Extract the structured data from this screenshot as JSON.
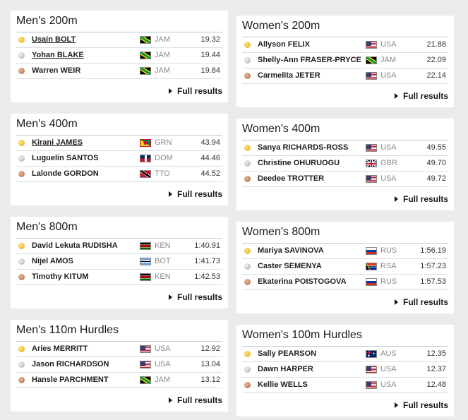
{
  "full_results_label": "Full results",
  "events": [
    {
      "title": "Men's 200m",
      "rows": [
        {
          "medal": "gold",
          "name": "Usain BOLT",
          "link": true,
          "flag": "JAM",
          "country": "JAM",
          "result": "19.32"
        },
        {
          "medal": "silver",
          "name": "Yohan BLAKE",
          "link": true,
          "flag": "JAM",
          "country": "JAM",
          "result": "19.44"
        },
        {
          "medal": "bronze",
          "name": "Warren WEIR",
          "link": false,
          "flag": "JAM",
          "country": "JAM",
          "result": "19.84"
        }
      ]
    },
    {
      "title": "Women's 200m",
      "rows": [
        {
          "medal": "gold",
          "name": "Allyson FELIX",
          "link": false,
          "flag": "USA",
          "country": "USA",
          "result": "21.88"
        },
        {
          "medal": "silver",
          "name": "Shelly-Ann FRASER-PRYCE",
          "link": false,
          "flag": "JAM",
          "country": "JAM",
          "result": "22.09"
        },
        {
          "medal": "bronze",
          "name": "Carmelita JETER",
          "link": false,
          "flag": "USA",
          "country": "USA",
          "result": "22.14"
        }
      ]
    },
    {
      "title": "Men's 400m",
      "rows": [
        {
          "medal": "gold",
          "name": "Kirani JAMES",
          "link": true,
          "flag": "GRN",
          "country": "GRN",
          "result": "43.94"
        },
        {
          "medal": "silver",
          "name": "Luguelin SANTOS",
          "link": false,
          "flag": "DOM",
          "country": "DOM",
          "result": "44.46"
        },
        {
          "medal": "bronze",
          "name": "Lalonde GORDON",
          "link": false,
          "flag": "TTO",
          "country": "TTO",
          "result": "44.52"
        }
      ]
    },
    {
      "title": "Women's 400m",
      "rows": [
        {
          "medal": "gold",
          "name": "Sanya RICHARDS-ROSS",
          "link": false,
          "flag": "USA",
          "country": "USA",
          "result": "49.55"
        },
        {
          "medal": "silver",
          "name": "Christine OHURUOGU",
          "link": false,
          "flag": "GBR",
          "country": "GBR",
          "result": "49.70"
        },
        {
          "medal": "bronze",
          "name": "Deedee TROTTER",
          "link": false,
          "flag": "USA",
          "country": "USA",
          "result": "49.72"
        }
      ]
    },
    {
      "title": "Men's 800m",
      "rows": [
        {
          "medal": "gold",
          "name": "David Lekuta RUDISHA",
          "link": false,
          "flag": "KEN",
          "country": "KEN",
          "result": "1:40.91"
        },
        {
          "medal": "silver",
          "name": "Nijel AMOS",
          "link": false,
          "flag": "BOT",
          "country": "BOT",
          "result": "1:41.73"
        },
        {
          "medal": "bronze",
          "name": "Timothy KITUM",
          "link": false,
          "flag": "KEN",
          "country": "KEN",
          "result": "1:42.53"
        }
      ]
    },
    {
      "title": "Women's 800m",
      "rows": [
        {
          "medal": "gold",
          "name": "Mariya SAVINOVA",
          "link": false,
          "flag": "RUS",
          "country": "RUS",
          "result": "1:56.19"
        },
        {
          "medal": "silver",
          "name": "Caster SEMENYA",
          "link": false,
          "flag": "RSA",
          "country": "RSA",
          "result": "1:57.23"
        },
        {
          "medal": "bronze",
          "name": "Ekaterina POISTOGOVA",
          "link": false,
          "flag": "RUS",
          "country": "RUS",
          "result": "1:57.53"
        }
      ]
    },
    {
      "title": "Men's 110m Hurdles",
      "rows": [
        {
          "medal": "gold",
          "name": "Aries MERRITT",
          "link": false,
          "flag": "USA",
          "country": "USA",
          "result": "12.92"
        },
        {
          "medal": "silver",
          "name": "Jason RICHARDSON",
          "link": false,
          "flag": "USA",
          "country": "USA",
          "result": "13.04"
        },
        {
          "medal": "bronze",
          "name": "Hansle PARCHMENT",
          "link": false,
          "flag": "JAM",
          "country": "JAM",
          "result": "13.12"
        }
      ]
    },
    {
      "title": "Women's 100m Hurdles",
      "rows": [
        {
          "medal": "gold",
          "name": "Sally PEARSON",
          "link": false,
          "flag": "AUS",
          "country": "AUS",
          "result": "12.35"
        },
        {
          "medal": "silver",
          "name": "Dawn HARPER",
          "link": false,
          "flag": "USA",
          "country": "USA",
          "result": "12.37"
        },
        {
          "medal": "bronze",
          "name": "Kellie WELLS",
          "link": false,
          "flag": "USA",
          "country": "USA",
          "result": "12.48"
        }
      ]
    }
  ]
}
